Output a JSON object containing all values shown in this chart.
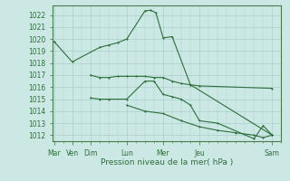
{
  "background_color": "#cce8e4",
  "grid_color": "#aacfcb",
  "line_color": "#2d6e3a",
  "spine_color": "#4a7a50",
  "xlabel": "Pression niveau de la mer( hPa )",
  "day_labels": [
    "Mar",
    "Ven",
    "Dim",
    "Lun",
    "Mer",
    "Jeu",
    "Sam"
  ],
  "day_positions": [
    0,
    1,
    2,
    4,
    6,
    8,
    12
  ],
  "ylim": [
    1011.5,
    1022.8
  ],
  "yticks": [
    1012,
    1013,
    1014,
    1015,
    1016,
    1017,
    1018,
    1019,
    1020,
    1021,
    1022
  ],
  "xlim": [
    -0.1,
    12.5
  ],
  "series1_x": [
    0,
    1,
    2.5,
    3,
    3.5,
    4,
    5,
    5.3,
    5.6,
    6,
    6.5,
    7.5,
    12
  ],
  "series1_y": [
    1019.8,
    1018.1,
    1019.3,
    1019.5,
    1019.7,
    1020.0,
    1022.35,
    1022.4,
    1022.2,
    1020.1,
    1020.2,
    1016.2,
    1012.0
  ],
  "series2_x": [
    2,
    2.5,
    3,
    3.5,
    4,
    4.5,
    5,
    5.5,
    6,
    6.5,
    7,
    7.5,
    8,
    12
  ],
  "series2_y": [
    1017.0,
    1016.8,
    1016.8,
    1016.9,
    1016.9,
    1016.9,
    1016.9,
    1016.8,
    1016.8,
    1016.5,
    1016.3,
    1016.2,
    1016.1,
    1015.9
  ],
  "series3_x": [
    2,
    2.5,
    3,
    4,
    5,
    5.5,
    6,
    6.5,
    7,
    7.5,
    8,
    9,
    11,
    11.5,
    12
  ],
  "series3_y": [
    1015.1,
    1015.0,
    1015.0,
    1015.0,
    1016.5,
    1016.5,
    1015.4,
    1015.2,
    1015.0,
    1014.5,
    1013.2,
    1013.0,
    1011.7,
    1012.8,
    1012.0
  ],
  "series4_x": [
    4,
    5,
    6,
    7,
    8,
    9,
    10,
    11,
    11.5,
    12
  ],
  "series4_y": [
    1014.5,
    1014.0,
    1013.8,
    1013.2,
    1012.7,
    1012.4,
    1012.2,
    1012.0,
    1011.8,
    1012.0
  ]
}
